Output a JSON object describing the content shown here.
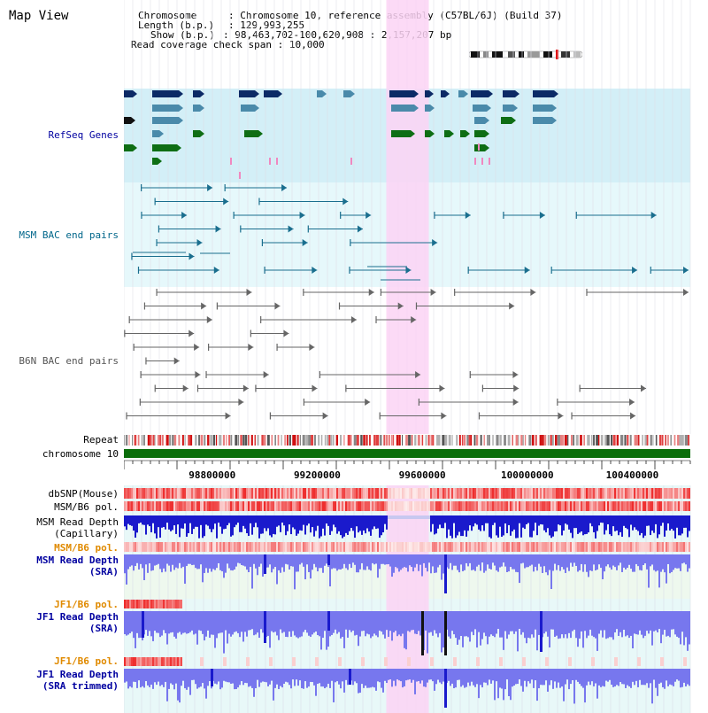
{
  "page": {
    "title": "Map View"
  },
  "info": {
    "chromosome_key": "Chromosome",
    "chromosome_val": "Chromosome 10, reference assembly (C57BL/6J) (Build 37)",
    "length_key": "Length (b.p.)",
    "length_val": "129,993,255",
    "show_key": "Show (b.p.)",
    "show_val": "98,463,702-100,620,908 : 2,157,207 bp",
    "span_key": "Read coverage check span",
    "span_val": "10,000"
  },
  "tracks": {
    "refseq": "RefSeq Genes",
    "msm_bac": "MSM BAC end pairs",
    "b6n_bac": "B6N BAC end pairs",
    "repeat": "Repeat",
    "chromosome": "chromosome 10",
    "dbsnp": "dbSNP(Mouse)",
    "msm_b6_pol": "MSM/B6 pol.",
    "msm_depth_cap_1": "MSM Read Depth",
    "msm_depth_cap_2": "(Capillary)",
    "msm_b6_pol2": "MSM/B6 pol.",
    "msm_depth_sra_1": "MSM Read Depth",
    "msm_depth_sra_2": "(SRA)",
    "jf1_b6_pol": "JF1/B6 pol.",
    "jf1_depth_sra_1": "JF1 Read Depth",
    "jf1_depth_sra_2": "(SRA)",
    "jf1_b6_pol2": "JF1/B6 pol.",
    "jf1_depth_trim_1": "JF1 Read Depth",
    "jf1_depth_trim_2": "(SRA trimmed)"
  },
  "axis": {
    "ticks": [
      "98800000",
      "99200000",
      "99600000",
      "100000000",
      "100400000"
    ],
    "range_bp": [
      98463702,
      100620908
    ],
    "highlight_bp": [
      99463000,
      99625000
    ]
  },
  "colors": {
    "refseq_bg": "#d3eff7",
    "bac_bg": "#e6f8fb",
    "highlight": "#fbd4f4",
    "gene_navy": "#0c2a66",
    "gene_steel": "#4a8aaa",
    "gene_green": "#0e6e14",
    "bac_teal": "#1a6e8e",
    "bac_gray": "#666666",
    "chrom": "#0a6e0a",
    "depth_blue": "#1a1acc",
    "depth_light": "#7777ee"
  }
}
